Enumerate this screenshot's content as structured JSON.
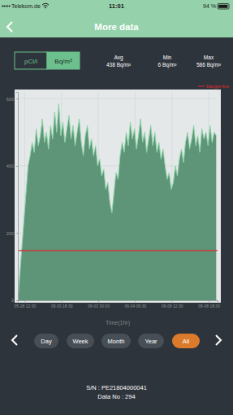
{
  "status_bar": {
    "carrier": "Telekom.de",
    "time": "11:01",
    "battery": "94 %"
  },
  "header": {
    "title": "More data"
  },
  "units": {
    "options": [
      "pCi/l",
      "Bq/m³"
    ],
    "selected": 1
  },
  "stats": [
    {
      "label": "Avg",
      "value": "438 Bq/m³"
    },
    {
      "label": "Min",
      "value": "6 Bq/m³"
    },
    {
      "label": "Max",
      "value": "586 Bq/m³"
    }
  ],
  "chart_data": {
    "type": "area",
    "x_label": "Time(1hr)",
    "color": "#8fd4a9",
    "grid": true,
    "danger_line": {
      "label": "Danger line",
      "value": 148,
      "color": "#e3262b"
    },
    "xlim": [
      0,
      293
    ],
    "xticks": [
      {
        "value": 10,
        "label": "05-28 12:30"
      },
      {
        "value": 64,
        "label": "05-30 18:30"
      },
      {
        "value": 118,
        "label": "06-02 00:30"
      },
      {
        "value": 172,
        "label": "06-04 06:30"
      },
      {
        "value": 226,
        "label": "06-06 12:30"
      },
      {
        "value": 280,
        "label": "06-08 18:30"
      }
    ],
    "ylim": [
      0,
      620
    ],
    "yticks": [
      0,
      200,
      400,
      600
    ],
    "x": [
      0,
      3,
      6,
      9,
      12,
      15,
      18,
      21,
      24,
      27,
      30,
      33,
      36,
      39,
      42,
      45,
      48,
      51,
      54,
      57,
      60,
      63,
      66,
      69,
      72,
      75,
      78,
      81,
      84,
      87,
      90,
      93,
      96,
      99,
      102,
      105,
      108,
      111,
      114,
      117,
      120,
      123,
      126,
      129,
      132,
      135,
      138,
      141,
      144,
      147,
      150,
      153,
      156,
      159,
      162,
      165,
      168,
      171,
      174,
      177,
      180,
      183,
      186,
      189,
      192,
      195,
      198,
      201,
      204,
      207,
      210,
      213,
      216,
      219,
      222,
      225,
      228,
      231,
      234,
      237,
      240,
      243,
      246,
      249,
      252,
      255,
      258,
      261,
      264,
      267,
      270,
      273,
      276,
      279,
      282,
      285,
      288,
      291
    ],
    "values": [
      0,
      80,
      160,
      240,
      320,
      400,
      430,
      470,
      440,
      510,
      460,
      490,
      540,
      470,
      500,
      450,
      520,
      480,
      560,
      500,
      585,
      490,
      530,
      470,
      510,
      550,
      480,
      520,
      460,
      500,
      540,
      470,
      430,
      490,
      520,
      450,
      480,
      430,
      460,
      400,
      420,
      370,
      390,
      330,
      350,
      290,
      260,
      320,
      380,
      360,
      430,
      470,
      440,
      500,
      460,
      530,
      480,
      510,
      450,
      490,
      540,
      470,
      500,
      440,
      480,
      520,
      460,
      500,
      440,
      470,
      420,
      450,
      400,
      360,
      380,
      330,
      350,
      400,
      370,
      420,
      450,
      410,
      470,
      500,
      450,
      480,
      520,
      460,
      490,
      440,
      510,
      480,
      500,
      460,
      520,
      470,
      500,
      490
    ]
  },
  "ranges": {
    "options": [
      "Day",
      "Week",
      "Month",
      "Year",
      "All"
    ],
    "selected": 4
  },
  "footer": {
    "sn": "S/N : PE21804000041",
    "data_no": "Data No : 294"
  }
}
